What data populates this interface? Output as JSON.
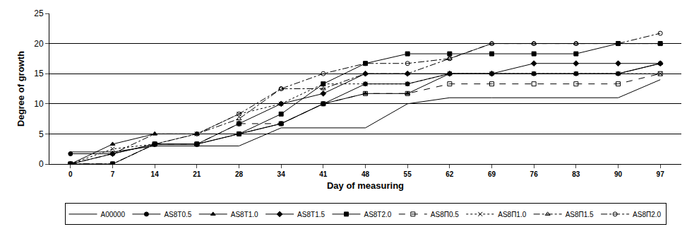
{
  "chart_data": {
    "type": "line",
    "x_label": "Day of measuring",
    "y_label": "Degree of growth",
    "categories": [
      "0",
      "7",
      "14",
      "21",
      "28",
      "34",
      "41",
      "48",
      "55",
      "62",
      "69",
      "76",
      "83",
      "90",
      "97"
    ],
    "ylim": [
      0,
      25
    ],
    "yticks": [
      0,
      5,
      10,
      15,
      20,
      25
    ],
    "grid": true,
    "legend": "bottom",
    "series": [
      {
        "name": "A00000",
        "color": "#000000",
        "marker": "none",
        "line_style": "solid",
        "values": [
          2,
          2,
          3,
          3,
          3,
          6,
          6,
          6,
          10,
          11,
          11,
          11,
          11,
          11,
          14
        ]
      },
      {
        "name": "AS8T0.5",
        "color": "#000000",
        "marker": "circle",
        "line_style": "solid",
        "values": [
          1.7,
          1.7,
          3.3,
          3.3,
          5,
          6.7,
          10,
          13.3,
          13.3,
          15,
          15,
          15,
          15,
          15,
          16.7
        ]
      },
      {
        "name": "AS8T1.0",
        "color": "#000000",
        "marker": "triangle",
        "line_style": "solid",
        "values": [
          0,
          3.3,
          5,
          5,
          5,
          6.7,
          10,
          11.7,
          11.7,
          15,
          15,
          15,
          15,
          15,
          16.7
        ]
      },
      {
        "name": "AS8T1.5",
        "color": "#000000",
        "marker": "diamond",
        "line_style": "solid",
        "values": [
          0,
          1.7,
          3.3,
          3.3,
          6.7,
          10,
          11.7,
          15,
          15,
          15,
          15,
          16.7,
          16.7,
          16.7,
          16.7
        ]
      },
      {
        "name": "AS8T2.0",
        "color": "#000000",
        "marker": "square",
        "line_style": "solid",
        "values": [
          0,
          0,
          3.3,
          3.3,
          5,
          8.3,
          13.3,
          16.7,
          18.3,
          18.3,
          18.3,
          18.3,
          18.3,
          20,
          20
        ]
      },
      {
        "name": "AS8П0.5",
        "color": "#000000",
        "marker": "square-open",
        "line_style": "dash",
        "values": [
          0,
          0,
          3.3,
          3.3,
          6.7,
          6.7,
          10,
          11.7,
          11.7,
          13.3,
          13.3,
          13.3,
          13.3,
          13.3,
          15
        ]
      },
      {
        "name": "AS8П1.0",
        "color": "#000000",
        "marker": "x",
        "line_style": "dot",
        "values": [
          0,
          2.5,
          3.3,
          5,
          8.3,
          10,
          13.3,
          13.3,
          13.3,
          15,
          15,
          15,
          15,
          15,
          15
        ]
      },
      {
        "name": "AS8П1.5",
        "color": "#000000",
        "marker": "triangle-open",
        "line_style": "dashdot",
        "values": [
          0,
          1.7,
          5,
          5,
          7.5,
          12.5,
          12.5,
          15,
          15,
          17.5,
          20,
          20,
          20,
          20,
          20
        ]
      },
      {
        "name": "AS8П2.0",
        "color": "#000000",
        "marker": "circle-open",
        "line_style": "dashdot",
        "values": [
          0,
          0,
          3.3,
          5,
          8.3,
          12.5,
          15,
          16.7,
          16.7,
          17.5,
          20,
          20,
          20,
          20,
          21.7
        ]
      }
    ]
  }
}
